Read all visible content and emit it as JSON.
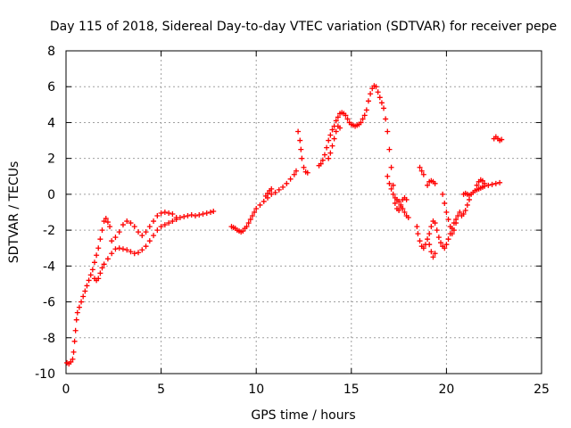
{
  "chart_data": {
    "type": "scatter",
    "title": "Day 115 of 2018, Sidereal Day-to-day VTEC variation (SDTVAR) for receiver pepe",
    "xlabel": "GPS time / hours",
    "ylabel": "SDTVAR / TECUs",
    "xlim": [
      0,
      25
    ],
    "ylim": [
      -10,
      8
    ],
    "xticks": [
      "0",
      "5",
      "10",
      "15",
      "20",
      "25"
    ],
    "yticks": [
      "-10",
      "-8",
      "-6",
      "-4",
      "-2",
      "0",
      "2",
      "4",
      "6",
      "8"
    ],
    "grid": true,
    "marker": "+",
    "marker_color": "#ff0000",
    "series": [
      {
        "points": [
          [
            0.05,
            -9.4
          ],
          [
            0.15,
            -9.45
          ],
          [
            0.25,
            -9.35
          ],
          [
            0.35,
            -9.2
          ],
          [
            0.4,
            -8.8
          ],
          [
            0.45,
            -8.2
          ],
          [
            0.5,
            -7.6
          ],
          [
            0.55,
            -7.0
          ],
          [
            0.6,
            -6.6
          ],
          [
            0.7,
            -6.3
          ],
          [
            0.8,
            -6.0
          ],
          [
            0.9,
            -5.7
          ],
          [
            1.0,
            -5.4
          ],
          [
            1.1,
            -5.1
          ],
          [
            1.2,
            -4.8
          ],
          [
            1.3,
            -4.5
          ],
          [
            1.4,
            -4.2
          ],
          [
            1.5,
            -3.8
          ],
          [
            1.6,
            -3.4
          ],
          [
            1.7,
            -3.0
          ],
          [
            1.8,
            -2.5
          ],
          [
            1.9,
            -2.0
          ],
          [
            2.0,
            -1.5
          ],
          [
            2.1,
            -1.35
          ],
          [
            2.2,
            -1.55
          ],
          [
            2.3,
            -1.8
          ],
          [
            1.5,
            -4.7
          ],
          [
            1.6,
            -4.8
          ],
          [
            1.7,
            -4.7
          ],
          [
            1.8,
            -4.4
          ],
          [
            1.9,
            -4.1
          ],
          [
            2.0,
            -3.9
          ],
          [
            2.2,
            -3.6
          ],
          [
            2.4,
            -3.3
          ],
          [
            2.6,
            -3.05
          ],
          [
            2.8,
            -3.0
          ],
          [
            3.0,
            -3.05
          ],
          [
            3.2,
            -3.1
          ],
          [
            3.4,
            -3.2
          ],
          [
            3.6,
            -3.3
          ],
          [
            3.8,
            -3.25
          ],
          [
            4.0,
            -3.1
          ],
          [
            4.2,
            -2.9
          ],
          [
            4.4,
            -2.6
          ],
          [
            4.6,
            -2.3
          ],
          [
            4.8,
            -2.0
          ],
          [
            5.0,
            -1.8
          ],
          [
            5.2,
            -1.7
          ],
          [
            5.4,
            -1.6
          ],
          [
            5.6,
            -1.5
          ],
          [
            5.8,
            -1.4
          ],
          [
            2.4,
            -2.6
          ],
          [
            2.6,
            -2.4
          ],
          [
            2.8,
            -2.1
          ],
          [
            3.0,
            -1.7
          ],
          [
            3.2,
            -1.5
          ],
          [
            3.4,
            -1.6
          ],
          [
            3.6,
            -1.8
          ],
          [
            3.8,
            -2.1
          ],
          [
            4.0,
            -2.3
          ],
          [
            4.2,
            -2.1
          ],
          [
            4.4,
            -1.8
          ],
          [
            4.6,
            -1.5
          ],
          [
            4.8,
            -1.2
          ],
          [
            5.0,
            -1.05
          ],
          [
            5.2,
            -1.0
          ],
          [
            5.4,
            -1.05
          ],
          [
            5.6,
            -1.1
          ],
          [
            5.8,
            -1.3
          ],
          [
            6.0,
            -1.3
          ],
          [
            6.2,
            -1.25
          ],
          [
            6.4,
            -1.2
          ],
          [
            6.6,
            -1.15
          ],
          [
            6.8,
            -1.2
          ],
          [
            7.0,
            -1.15
          ],
          [
            7.2,
            -1.1
          ],
          [
            7.4,
            -1.05
          ],
          [
            7.6,
            -1.0
          ],
          [
            7.75,
            -0.95
          ],
          [
            8.7,
            -1.8
          ],
          [
            8.8,
            -1.85
          ],
          [
            8.9,
            -1.9
          ],
          [
            9.0,
            -2.0
          ],
          [
            9.1,
            -2.05
          ],
          [
            9.2,
            -2.1
          ],
          [
            9.3,
            -2.05
          ],
          [
            9.4,
            -1.9
          ],
          [
            9.5,
            -1.8
          ],
          [
            9.6,
            -1.6
          ],
          [
            9.7,
            -1.4
          ],
          [
            9.8,
            -1.2
          ],
          [
            9.9,
            -1.0
          ],
          [
            10.0,
            -0.8
          ],
          [
            10.2,
            -0.6
          ],
          [
            10.4,
            -0.4
          ],
          [
            10.6,
            -0.2
          ],
          [
            10.8,
            0.0
          ],
          [
            11.0,
            0.1
          ],
          [
            11.2,
            0.25
          ],
          [
            11.4,
            0.4
          ],
          [
            11.6,
            0.6
          ],
          [
            11.8,
            0.85
          ],
          [
            12.0,
            1.1
          ],
          [
            12.1,
            1.3
          ],
          [
            10.5,
            -0.1
          ],
          [
            10.6,
            0.05
          ],
          [
            10.7,
            0.2
          ],
          [
            10.8,
            0.3
          ],
          [
            12.2,
            3.5
          ],
          [
            12.3,
            3.0
          ],
          [
            12.35,
            2.5
          ],
          [
            12.4,
            2.0
          ],
          [
            12.5,
            1.5
          ],
          [
            12.6,
            1.25
          ],
          [
            12.7,
            1.2
          ],
          [
            13.3,
            1.6
          ],
          [
            13.4,
            1.7
          ],
          [
            13.5,
            1.9
          ],
          [
            13.6,
            2.2
          ],
          [
            13.7,
            2.6
          ],
          [
            13.8,
            3.0
          ],
          [
            13.9,
            3.3
          ],
          [
            14.0,
            3.6
          ],
          [
            14.1,
            3.8
          ],
          [
            14.2,
            4.1
          ],
          [
            14.3,
            4.3
          ],
          [
            14.4,
            4.5
          ],
          [
            14.5,
            4.55
          ],
          [
            14.6,
            4.5
          ],
          [
            14.7,
            4.4
          ],
          [
            14.8,
            4.2
          ],
          [
            14.9,
            4.0
          ],
          [
            15.0,
            3.9
          ],
          [
            15.1,
            3.85
          ],
          [
            15.2,
            3.8
          ],
          [
            15.3,
            3.85
          ],
          [
            15.4,
            3.9
          ],
          [
            15.5,
            4.0
          ],
          [
            15.6,
            4.2
          ],
          [
            15.7,
            4.4
          ],
          [
            15.8,
            4.7
          ],
          [
            15.9,
            5.2
          ],
          [
            16.0,
            5.6
          ],
          [
            16.1,
            5.9
          ],
          [
            16.2,
            6.05
          ],
          [
            16.3,
            6.0
          ],
          [
            16.4,
            5.7
          ],
          [
            16.5,
            5.4
          ],
          [
            16.6,
            5.1
          ],
          [
            16.7,
            4.8
          ],
          [
            16.8,
            4.2
          ],
          [
            16.9,
            3.5
          ],
          [
            17.0,
            2.5
          ],
          [
            17.1,
            1.5
          ],
          [
            17.2,
            0.5
          ],
          [
            17.3,
            -0.2
          ],
          [
            17.4,
            -0.3
          ],
          [
            17.5,
            -0.4
          ],
          [
            17.6,
            -0.6
          ],
          [
            17.7,
            -0.8
          ],
          [
            17.8,
            -1.0
          ],
          [
            17.9,
            -1.2
          ],
          [
            18.0,
            -1.3
          ],
          [
            13.8,
            2.0
          ],
          [
            13.9,
            2.3
          ],
          [
            14.0,
            2.7
          ],
          [
            14.1,
            3.1
          ],
          [
            14.2,
            3.5
          ],
          [
            14.3,
            3.8
          ],
          [
            14.4,
            3.7
          ],
          [
            16.9,
            1.0
          ],
          [
            17.0,
            0.6
          ],
          [
            17.1,
            0.3
          ],
          [
            17.2,
            0.0
          ],
          [
            17.3,
            -0.5
          ],
          [
            17.4,
            -0.8
          ],
          [
            17.5,
            -0.9
          ],
          [
            17.6,
            -0.7
          ],
          [
            17.7,
            -0.3
          ],
          [
            17.8,
            -0.2
          ],
          [
            17.9,
            -0.3
          ],
          [
            18.45,
            -1.8
          ],
          [
            18.5,
            -2.2
          ],
          [
            18.6,
            -2.6
          ],
          [
            18.7,
            -2.9
          ],
          [
            18.8,
            -3.0
          ],
          [
            18.9,
            -2.8
          ],
          [
            19.0,
            -2.5
          ],
          [
            19.1,
            -2.2
          ],
          [
            19.2,
            -1.8
          ],
          [
            19.3,
            -1.5
          ],
          [
            19.4,
            -1.6
          ],
          [
            19.5,
            -2.0
          ],
          [
            19.6,
            -2.4
          ],
          [
            19.7,
            -2.7
          ],
          [
            19.8,
            -2.9
          ],
          [
            19.9,
            -3.0
          ],
          [
            20.0,
            -2.8
          ],
          [
            20.1,
            -2.5
          ],
          [
            20.2,
            -2.2
          ],
          [
            20.3,
            -1.9
          ],
          [
            20.4,
            -1.6
          ],
          [
            20.5,
            -1.4
          ],
          [
            18.6,
            1.5
          ],
          [
            18.7,
            1.3
          ],
          [
            18.8,
            1.1
          ],
          [
            19.1,
            -2.8
          ],
          [
            19.2,
            -3.2
          ],
          [
            19.3,
            -3.5
          ],
          [
            19.4,
            -3.3
          ],
          [
            19.0,
            0.5
          ],
          [
            19.1,
            0.7
          ],
          [
            19.2,
            0.75
          ],
          [
            19.3,
            0.7
          ],
          [
            19.4,
            0.6
          ],
          [
            19.8,
            0.0
          ],
          [
            19.9,
            -0.5
          ],
          [
            20.0,
            -1.0
          ],
          [
            20.1,
            -1.4
          ],
          [
            20.2,
            -1.8
          ],
          [
            20.3,
            -2.2
          ],
          [
            20.4,
            -2.0
          ],
          [
            20.5,
            -1.6
          ],
          [
            20.6,
            -1.2
          ],
          [
            20.7,
            -1.0
          ],
          [
            20.8,
            -1.2
          ],
          [
            20.9,
            -1.1
          ],
          [
            21.0,
            -0.9
          ],
          [
            21.1,
            -0.6
          ],
          [
            21.2,
            -0.3
          ],
          [
            21.3,
            0.0
          ],
          [
            21.4,
            0.1
          ],
          [
            21.5,
            0.2
          ],
          [
            21.6,
            0.25
          ],
          [
            21.7,
            0.3
          ],
          [
            21.8,
            0.35
          ],
          [
            21.9,
            0.4
          ],
          [
            22.0,
            0.45
          ],
          [
            22.2,
            0.5
          ],
          [
            22.4,
            0.55
          ],
          [
            22.6,
            0.6
          ],
          [
            22.8,
            0.65
          ],
          [
            20.9,
            0.0
          ],
          [
            21.0,
            0.05
          ],
          [
            21.1,
            0.0
          ],
          [
            21.2,
            -0.05
          ],
          [
            21.6,
            0.5
          ],
          [
            21.7,
            0.7
          ],
          [
            21.8,
            0.8
          ],
          [
            21.9,
            0.75
          ],
          [
            22.0,
            0.6
          ],
          [
            22.5,
            3.1
          ],
          [
            22.6,
            3.2
          ],
          [
            22.7,
            3.1
          ],
          [
            22.8,
            3.0
          ],
          [
            22.9,
            3.05
          ]
        ]
      }
    ]
  }
}
